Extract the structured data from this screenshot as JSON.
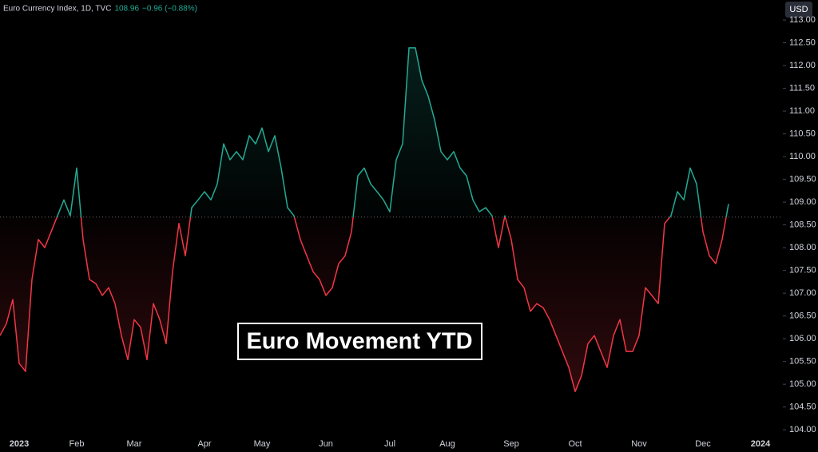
{
  "header": {
    "symbol": "Euro Currency Index, 1D, TVC",
    "price": "108.96",
    "change": "−0.96 (−0.88%)",
    "currency": "USD"
  },
  "chart_data": {
    "type": "line",
    "title": "Euro Movement YTD",
    "categories": [
      null,
      null,
      null,
      "2023",
      null,
      null,
      null,
      null,
      null,
      null,
      null,
      null,
      "Feb",
      null,
      null,
      null,
      null,
      null,
      null,
      null,
      null,
      "Mar",
      null,
      null,
      null,
      null,
      null,
      null,
      null,
      null,
      null,
      null,
      "Apr",
      null,
      null,
      null,
      null,
      null,
      null,
      null,
      null,
      "May",
      null,
      null,
      null,
      null,
      null,
      null,
      null,
      null,
      null,
      "Jun",
      null,
      null,
      null,
      null,
      null,
      null,
      null,
      null,
      null,
      "Jul",
      null,
      null,
      null,
      null,
      null,
      null,
      null,
      null,
      "Aug",
      null,
      null,
      null,
      null,
      null,
      null,
      null,
      null,
      null,
      "Sep",
      null,
      null,
      null,
      null,
      null,
      null,
      null,
      null,
      null,
      "Oct",
      null,
      null,
      null,
      null,
      null,
      null,
      null,
      null,
      null,
      "Nov",
      null,
      null,
      null,
      null,
      null,
      null,
      null,
      null,
      null,
      "Dec",
      null,
      null,
      null,
      null,
      null,
      null,
      null,
      null,
      "2024"
    ],
    "values": [
      106.07,
      106.33,
      106.86,
      105.46,
      105.28,
      107.3,
      108.18,
      108.0,
      108.35,
      108.7,
      109.05,
      108.7,
      109.75,
      108.18,
      107.3,
      107.21,
      106.95,
      107.12,
      106.77,
      106.07,
      105.54,
      106.42,
      106.25,
      105.54,
      106.77,
      106.42,
      105.89,
      107.47,
      108.53,
      107.82,
      108.88,
      109.05,
      109.23,
      109.05,
      109.4,
      110.28,
      109.93,
      110.11,
      109.93,
      110.46,
      110.28,
      110.63,
      110.11,
      110.46,
      109.75,
      108.88,
      108.7,
      108.18,
      107.82,
      107.47,
      107.3,
      106.95,
      107.12,
      107.65,
      107.82,
      108.35,
      109.58,
      109.75,
      109.4,
      109.23,
      109.05,
      108.79,
      109.93,
      110.28,
      112.39,
      112.39,
      111.68,
      111.33,
      110.81,
      110.11,
      109.93,
      110.11,
      109.75,
      109.58,
      109.05,
      108.79,
      108.88,
      108.7,
      108.0,
      108.7,
      108.18,
      107.3,
      107.12,
      106.6,
      106.77,
      106.68,
      106.42,
      106.07,
      105.72,
      105.37,
      104.84,
      105.19,
      105.89,
      106.07,
      105.72,
      105.37,
      106.07,
      106.42,
      105.72,
      105.72,
      106.07,
      107.12,
      106.95,
      106.77,
      108.53,
      108.7,
      109.23,
      109.05,
      109.75,
      109.4,
      108.35,
      107.82,
      107.65,
      108.18,
      108.96,
      null,
      null,
      null,
      null,
      null
    ],
    "baseline": 108.67,
    "up_color": "#22ab94",
    "down_color": "#f23645",
    "ylim": [
      103.88,
      113.44
    ],
    "yticks": [
      {
        "value": 104,
        "label": "104.00"
      },
      {
        "value": 104.5,
        "label": "104.50"
      },
      {
        "value": 105,
        "label": "105.00"
      },
      {
        "value": 105.5,
        "label": "105.50"
      },
      {
        "value": 106,
        "label": "106.00"
      },
      {
        "value": 106.5,
        "label": "106.50"
      },
      {
        "value": 107,
        "label": "107.00"
      },
      {
        "value": 107.5,
        "label": "107.50"
      },
      {
        "value": 108,
        "label": "108.00"
      },
      {
        "value": 108.5,
        "label": "108.50"
      },
      {
        "value": 109,
        "label": "109.00"
      },
      {
        "value": 109.5,
        "label": "109.50"
      },
      {
        "value": 110,
        "label": "110.00"
      },
      {
        "value": 110.5,
        "label": "110.50"
      },
      {
        "value": 111,
        "label": "111.00"
      },
      {
        "value": 111.5,
        "label": "111.50"
      },
      {
        "value": 112,
        "label": "112.00"
      },
      {
        "value": 112.5,
        "label": "112.50"
      },
      {
        "value": 113,
        "label": "113.00"
      }
    ]
  }
}
